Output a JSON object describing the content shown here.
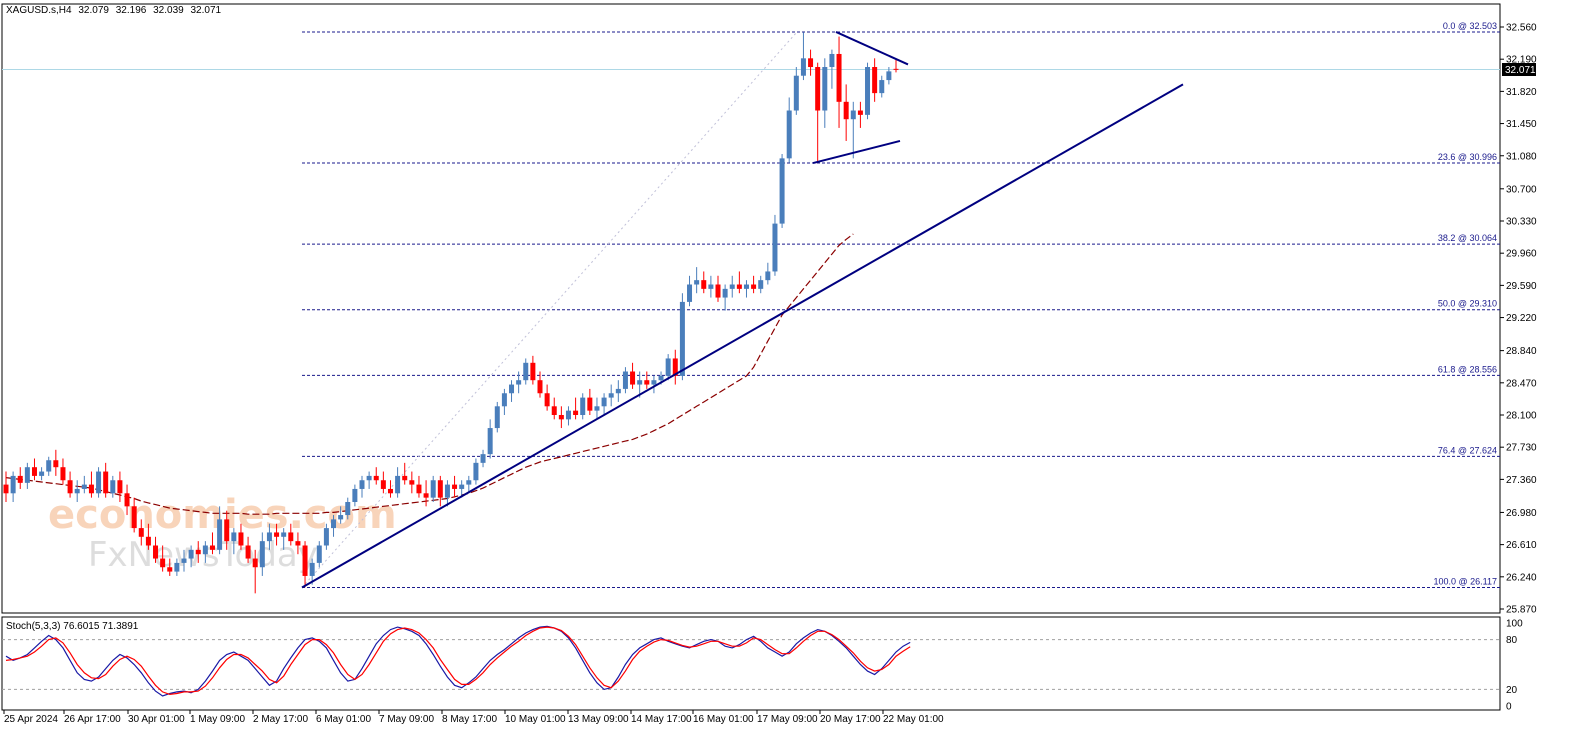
{
  "header": {
    "symbol": "XAGUSD.s,H4",
    "open": "32.079",
    "high": "32.196",
    "low": "32.039",
    "close": "32.071"
  },
  "current_price_label": "32.071",
  "stoch_header": "Stoch(5,3,3) 76.6015 71.3891",
  "watermark": {
    "line1": "economies.com",
    "line2": "FxNewsToday"
  },
  "colors": {
    "bull": "#4a7ebb",
    "bear": "#ff0000",
    "trend": "#000080",
    "ma": "#8b0000",
    "fib": "#1a1a8c",
    "stoch_main": "#1a1aa6",
    "stoch_signal": "#ff0000",
    "current_line": "#add8e6"
  },
  "chart_data": [
    {
      "type": "candlestick",
      "title": "",
      "y_ticks": [
        "32.560",
        "32.190",
        "31.820",
        "31.450",
        "31.080",
        "30.700",
        "30.330",
        "29.960",
        "29.590",
        "29.220",
        "28.840",
        "28.470",
        "28.100",
        "27.730",
        "27.360",
        "26.980",
        "26.610",
        "26.240",
        "25.870"
      ],
      "ylim": [
        25.87,
        32.56
      ],
      "x_ticks": [
        "25 Apr 2024",
        "26 Apr 17:00",
        "30 Apr 01:00",
        "1 May 09:00",
        "2 May 17:00",
        "6 May 01:00",
        "7 May 09:00",
        "8 May 17:00",
        "10 May 01:00",
        "13 May 09:00",
        "14 May 17:00",
        "16 May 01:00",
        "17 May 09:00",
        "20 May 17:00",
        "22 May 01:00"
      ],
      "fibonacci": [
        {
          "label": "0.0 @ 32.503",
          "price": 32.503
        },
        {
          "label": "23.6 @ 30.996",
          "price": 30.996
        },
        {
          "label": "38.2 @ 30.064",
          "price": 30.064
        },
        {
          "label": "50.0 @ 29.310",
          "price": 29.31
        },
        {
          "label": "61.8 @ 28.556",
          "price": 28.556
        },
        {
          "label": "76.4 @ 27.624",
          "price": 27.624
        },
        {
          "label": "100.0 @ 26.117",
          "price": 26.117
        }
      ],
      "current_price": 32.071,
      "candles": [
        [
          27.3,
          27.45,
          27.1,
          27.2
        ],
        [
          27.2,
          27.45,
          27.1,
          27.4
        ],
        [
          27.4,
          27.5,
          27.25,
          27.32
        ],
        [
          27.32,
          27.55,
          27.25,
          27.5
        ],
        [
          27.5,
          27.6,
          27.35,
          27.4
        ],
        [
          27.4,
          27.5,
          27.35,
          27.45
        ],
        [
          27.45,
          27.62,
          27.4,
          27.58
        ],
        [
          27.58,
          27.7,
          27.4,
          27.5
        ],
        [
          27.5,
          27.6,
          27.3,
          27.35
        ],
        [
          27.35,
          27.45,
          27.15,
          27.2
        ],
        [
          27.2,
          27.35,
          27.1,
          27.25
        ],
        [
          27.25,
          27.4,
          27.2,
          27.3
        ],
        [
          27.3,
          27.45,
          27.15,
          27.2
        ],
        [
          27.2,
          27.5,
          27.15,
          27.45
        ],
        [
          27.45,
          27.55,
          27.15,
          27.2
        ],
        [
          27.2,
          27.4,
          27.15,
          27.35
        ],
        [
          27.35,
          27.45,
          27.1,
          27.2
        ],
        [
          27.2,
          27.3,
          26.95,
          27.05
        ],
        [
          27.05,
          27.15,
          26.75,
          26.8
        ],
        [
          26.8,
          26.9,
          26.6,
          26.7
        ],
        [
          26.7,
          26.85,
          26.55,
          26.6
        ],
        [
          26.6,
          26.7,
          26.4,
          26.45
        ],
        [
          26.45,
          26.6,
          26.3,
          26.35
        ],
        [
          26.35,
          26.45,
          26.25,
          26.3
        ],
        [
          26.3,
          26.45,
          26.25,
          26.4
        ],
        [
          26.4,
          26.55,
          26.3,
          26.45
        ],
        [
          26.45,
          26.6,
          26.35,
          26.55
        ],
        [
          26.55,
          26.65,
          26.4,
          26.5
        ],
        [
          26.5,
          26.65,
          26.4,
          26.6
        ],
        [
          26.6,
          26.75,
          26.5,
          26.55
        ],
        [
          26.55,
          27.05,
          26.5,
          26.9
        ],
        [
          26.9,
          27.0,
          26.55,
          26.65
        ],
        [
          26.65,
          26.8,
          26.5,
          26.75
        ],
        [
          26.75,
          26.85,
          26.55,
          26.6
        ],
        [
          26.6,
          26.7,
          26.4,
          26.45
        ],
        [
          26.45,
          26.55,
          26.05,
          26.35
        ],
        [
          26.35,
          26.75,
          26.25,
          26.65
        ],
        [
          26.65,
          26.85,
          26.55,
          26.75
        ],
        [
          26.75,
          26.85,
          26.6,
          26.7
        ],
        [
          26.7,
          26.8,
          26.55,
          26.75
        ],
        [
          26.75,
          26.85,
          26.6,
          26.65
        ],
        [
          26.65,
          26.75,
          26.5,
          26.6
        ],
        [
          26.6,
          26.65,
          26.12,
          26.25
        ],
        [
          26.25,
          26.45,
          26.15,
          26.4
        ],
        [
          26.4,
          26.65,
          26.35,
          26.6
        ],
        [
          26.6,
          26.85,
          26.55,
          26.8
        ],
        [
          26.8,
          26.95,
          26.7,
          26.9
        ],
        [
          26.9,
          27.05,
          26.85,
          26.95
        ],
        [
          26.95,
          27.15,
          26.9,
          27.1
        ],
        [
          27.1,
          27.3,
          27.05,
          27.25
        ],
        [
          27.25,
          27.4,
          27.15,
          27.35
        ],
        [
          27.35,
          27.45,
          27.25,
          27.4
        ],
        [
          27.4,
          27.5,
          27.3,
          27.35
        ],
        [
          27.35,
          27.45,
          27.2,
          27.25
        ],
        [
          27.25,
          27.35,
          27.15,
          27.2
        ],
        [
          27.2,
          27.5,
          27.15,
          27.4
        ],
        [
          27.4,
          27.55,
          27.3,
          27.35
        ],
        [
          27.35,
          27.45,
          27.2,
          27.3
        ],
        [
          27.3,
          27.4,
          27.15,
          27.2
        ],
        [
          27.2,
          27.35,
          27.05,
          27.15
        ],
        [
          27.15,
          27.4,
          27.1,
          27.35
        ],
        [
          27.35,
          27.4,
          27.05,
          27.15
        ],
        [
          27.15,
          27.35,
          27.05,
          27.3
        ],
        [
          27.3,
          27.4,
          27.15,
          27.25
        ],
        [
          27.25,
          27.35,
          27.15,
          27.3
        ],
        [
          27.3,
          27.4,
          27.2,
          27.35
        ],
        [
          27.35,
          27.6,
          27.3,
          27.55
        ],
        [
          27.55,
          27.7,
          27.5,
          27.65
        ],
        [
          27.65,
          28.05,
          27.6,
          27.95
        ],
        [
          27.95,
          28.25,
          27.9,
          28.2
        ],
        [
          28.2,
          28.4,
          28.1,
          28.35
        ],
        [
          28.35,
          28.5,
          28.25,
          28.45
        ],
        [
          28.45,
          28.6,
          28.35,
          28.5
        ],
        [
          28.5,
          28.75,
          28.45,
          28.7
        ],
        [
          28.7,
          28.78,
          28.45,
          28.5
        ],
        [
          28.5,
          28.6,
          28.3,
          28.35
        ],
        [
          28.35,
          28.45,
          28.15,
          28.2
        ],
        [
          28.2,
          28.3,
          28.05,
          28.1
        ],
        [
          28.1,
          28.2,
          27.95,
          28.05
        ],
        [
          28.05,
          28.2,
          27.98,
          28.15
        ],
        [
          28.15,
          28.3,
          28.05,
          28.1
        ],
        [
          28.1,
          28.35,
          28.05,
          28.3
        ],
        [
          28.3,
          28.4,
          28.1,
          28.15
        ],
        [
          28.15,
          28.3,
          28.05,
          28.2
        ],
        [
          28.2,
          28.35,
          28.1,
          28.3
        ],
        [
          28.3,
          28.45,
          28.2,
          28.35
        ],
        [
          28.35,
          28.5,
          28.25,
          28.4
        ],
        [
          28.4,
          28.65,
          28.35,
          28.6
        ],
        [
          28.6,
          28.7,
          28.4,
          28.45
        ],
        [
          28.45,
          28.6,
          28.3,
          28.5
        ],
        [
          28.5,
          28.6,
          28.4,
          28.45
        ],
        [
          28.45,
          28.55,
          28.35,
          28.5
        ],
        [
          28.5,
          28.6,
          28.45,
          28.55
        ],
        [
          28.55,
          28.8,
          28.5,
          28.75
        ],
        [
          28.75,
          28.85,
          28.45,
          28.55
        ],
        [
          28.55,
          29.5,
          28.5,
          29.4
        ],
        [
          29.4,
          29.7,
          29.35,
          29.6
        ],
        [
          29.6,
          29.8,
          29.5,
          29.65
        ],
        [
          29.65,
          29.75,
          29.5,
          29.55
        ],
        [
          29.55,
          29.7,
          29.45,
          29.6
        ],
        [
          29.6,
          29.7,
          29.4,
          29.45
        ],
        [
          29.45,
          29.6,
          29.3,
          29.55
        ],
        [
          29.55,
          29.7,
          29.45,
          29.6
        ],
        [
          29.6,
          29.75,
          29.5,
          29.55
        ],
        [
          29.55,
          29.65,
          29.45,
          29.6
        ],
        [
          29.6,
          29.7,
          29.5,
          29.55
        ],
        [
          29.55,
          29.7,
          29.5,
          29.65
        ],
        [
          29.65,
          29.85,
          29.6,
          29.75
        ],
        [
          29.75,
          30.4,
          29.7,
          30.3
        ],
        [
          30.3,
          31.1,
          30.25,
          31.05
        ],
        [
          31.05,
          31.75,
          31.0,
          31.6
        ],
        [
          31.6,
          32.1,
          31.55,
          32.0
        ],
        [
          32.0,
          32.5,
          31.95,
          32.2
        ],
        [
          32.2,
          32.3,
          32.0,
          32.1
        ],
        [
          32.1,
          32.15,
          31.0,
          31.6
        ],
        [
          31.6,
          32.2,
          31.4,
          32.1
        ],
        [
          32.1,
          32.3,
          31.85,
          32.25
        ],
        [
          32.25,
          32.45,
          31.4,
          31.7
        ],
        [
          31.7,
          31.9,
          31.25,
          31.5
        ],
        [
          31.5,
          31.7,
          31.05,
          31.6
        ],
        [
          31.6,
          31.7,
          31.4,
          31.55
        ],
        [
          31.55,
          32.15,
          31.5,
          32.1
        ],
        [
          32.1,
          32.2,
          31.7,
          31.8
        ],
        [
          31.8,
          32.0,
          31.75,
          31.95
        ],
        [
          31.95,
          32.1,
          31.9,
          32.05
        ],
        [
          32.079,
          32.196,
          32.039,
          32.071
        ]
      ],
      "moving_average": [
        27.38,
        27.37,
        27.36,
        27.35,
        27.34,
        27.33,
        27.32,
        27.31,
        27.3,
        27.29,
        27.28,
        27.27,
        27.26,
        27.24,
        27.22,
        27.2,
        27.18,
        27.16,
        27.14,
        27.11,
        27.09,
        27.07,
        27.05,
        27.03,
        27.02,
        27.01,
        27.0,
        26.99,
        26.98,
        26.97,
        26.97,
        26.97,
        26.97,
        26.97,
        26.96,
        26.96,
        26.96,
        26.96,
        26.97,
        26.97,
        26.97,
        26.97,
        26.97,
        26.97,
        26.97,
        26.98,
        26.98,
        26.99,
        27.0,
        27.01,
        27.02,
        27.03,
        27.04,
        27.05,
        27.06,
        27.07,
        27.08,
        27.09,
        27.1,
        27.11,
        27.12,
        27.13,
        27.14,
        27.16,
        27.18,
        27.2,
        27.23,
        27.26,
        27.3,
        27.34,
        27.38,
        27.42,
        27.46,
        27.5,
        27.53,
        27.56,
        27.58,
        27.6,
        27.62,
        27.64,
        27.66,
        27.68,
        27.7,
        27.72,
        27.74,
        27.76,
        27.78,
        27.8,
        27.82,
        27.85,
        27.88,
        27.92,
        27.96,
        28.0,
        28.05,
        28.1,
        28.15,
        28.2,
        28.25,
        28.3,
        28.35,
        28.4,
        28.45,
        28.5,
        28.55,
        28.65,
        28.8,
        28.95,
        29.1,
        29.25,
        29.35,
        29.45,
        29.55,
        29.65,
        29.75,
        29.85,
        29.95,
        30.05,
        30.12,
        30.18
      ],
      "trendline": [
        [
          26.117,
          0
        ],
        [
          31.9,
          108
        ]
      ],
      "triangle_upper": [
        [
          32.503,
          0
        ],
        [
          32.13,
          4
        ]
      ],
      "triangle_lower": [
        [
          30.996,
          0
        ],
        [
          31.25,
          4
        ]
      ]
    },
    {
      "type": "line",
      "title": "Stoch(5,3,3) 76.6015 71.3891",
      "y_ticks": [
        "100",
        "80",
        "20",
        "0"
      ],
      "ylim": [
        0,
        100
      ],
      "levels": [
        80,
        20
      ],
      "series": [
        {
          "values": [
            60,
            55,
            58,
            62,
            70,
            78,
            85,
            80,
            70,
            55,
            40,
            32,
            30,
            35,
            45,
            55,
            62,
            58,
            50,
            40,
            28,
            18,
            12,
            15,
            17,
            18,
            16,
            20,
            30,
            42,
            55,
            62,
            65,
            60,
            55,
            45,
            35,
            25,
            30,
            45,
            58,
            70,
            80,
            82,
            78,
            70,
            55,
            40,
            30,
            32,
            45,
            60,
            75,
            85,
            92,
            95,
            93,
            90,
            85,
            75,
            62,
            48,
            35,
            25,
            22,
            28,
            35,
            45,
            55,
            62,
            68,
            75,
            82,
            88,
            92,
            95,
            96,
            94,
            90,
            82,
            70,
            55,
            40,
            28,
            20,
            22,
            35,
            50,
            62,
            70,
            75,
            80,
            82,
            78,
            75,
            72,
            70,
            74,
            78,
            80,
            78,
            72,
            70,
            74,
            80,
            84,
            78,
            70,
            65,
            60,
            65,
            75,
            82,
            88,
            92,
            90,
            85,
            78,
            70,
            60,
            50,
            42,
            38,
            45,
            55,
            65,
            72,
            76.6
          ]
        },
        {
          "values": [
            55,
            56,
            58,
            60,
            65,
            72,
            80,
            82,
            76,
            64,
            50,
            40,
            34,
            33,
            38,
            48,
            56,
            60,
            56,
            48,
            36,
            25,
            17,
            14,
            15,
            17,
            17,
            18,
            24,
            34,
            46,
            56,
            62,
            62,
            58,
            50,
            42,
            32,
            28,
            36,
            50,
            62,
            74,
            80,
            80,
            74,
            64,
            50,
            38,
            32,
            38,
            50,
            64,
            78,
            87,
            92,
            94,
            92,
            88,
            80,
            70,
            56,
            44,
            32,
            26,
            26,
            32,
            40,
            50,
            58,
            65,
            72,
            78,
            85,
            90,
            94,
            95,
            94,
            91,
            84,
            74,
            60,
            46,
            34,
            25,
            22,
            30,
            42,
            56,
            66,
            72,
            77,
            80,
            79,
            76,
            73,
            71,
            72,
            75,
            78,
            78,
            75,
            72,
            72,
            76,
            82,
            80,
            74,
            68,
            63,
            63,
            70,
            78,
            85,
            90,
            90,
            86,
            80,
            72,
            64,
            54,
            46,
            42,
            44,
            50,
            60,
            66,
            71.4
          ]
        }
      ]
    }
  ]
}
